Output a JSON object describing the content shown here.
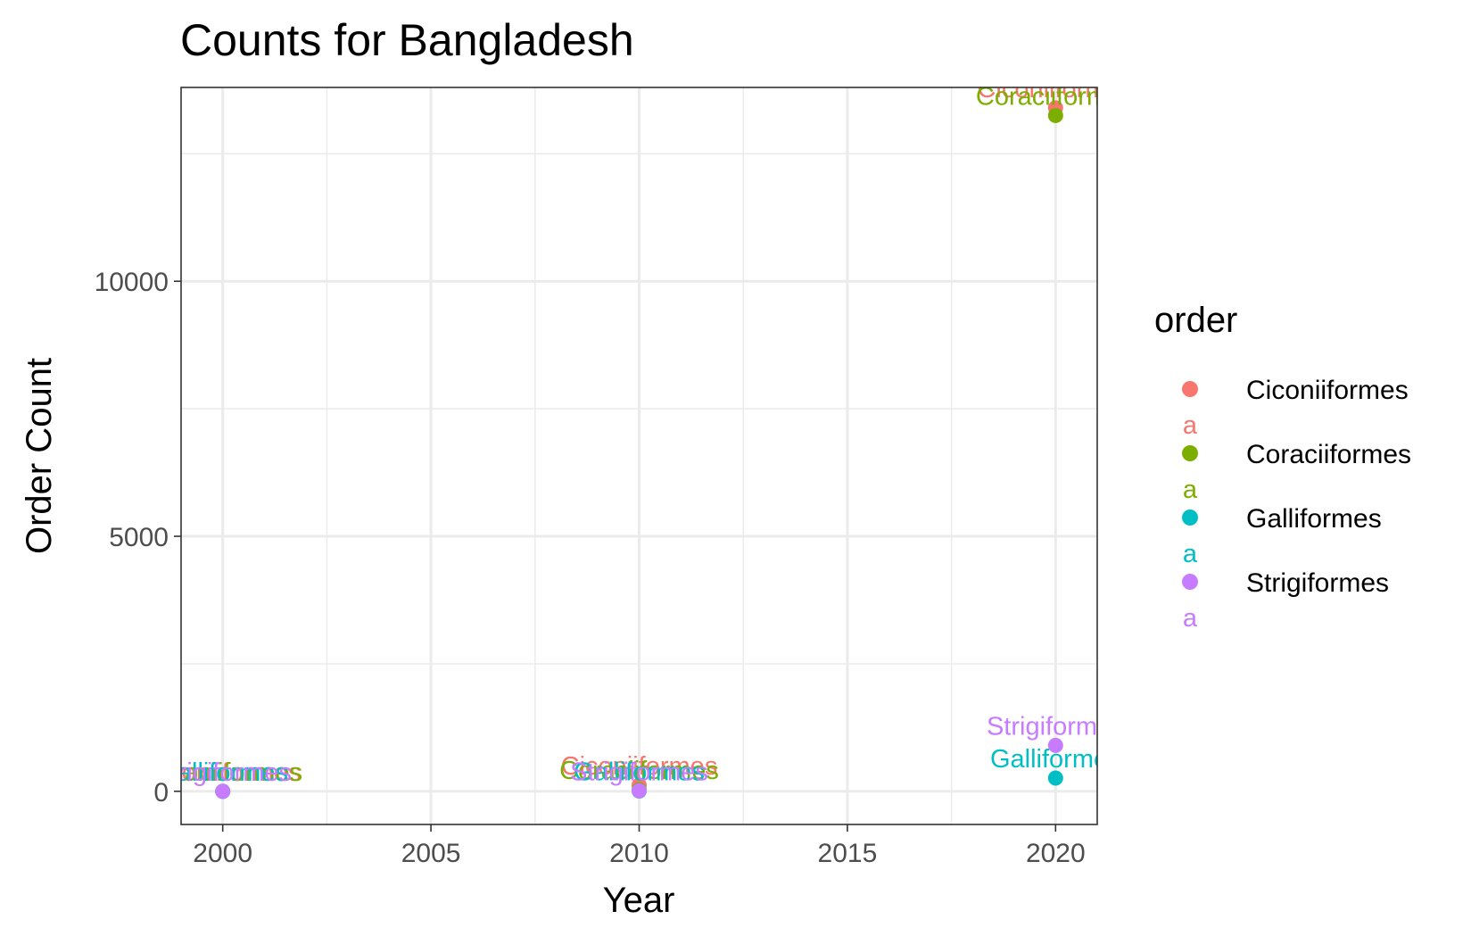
{
  "chart_data": {
    "type": "scatter",
    "title": "Counts for Bangladesh",
    "xlabel": "Year",
    "ylabel": "Order Count",
    "xlim": [
      1999,
      2021
    ],
    "ylim": [
      -650,
      13800
    ],
    "x_ticks": [
      2000,
      2005,
      2010,
      2015,
      2020
    ],
    "x_tick_labels": [
      "2000",
      "2005",
      "2010",
      "2015",
      "2020"
    ],
    "y_ticks": [
      0,
      5000,
      10000
    ],
    "y_tick_labels": [
      "0",
      "5000",
      "10000"
    ],
    "grid": true,
    "legend": {
      "title": "order",
      "position": "right",
      "entries": [
        "Ciconiiformes",
        "Coraciiformes",
        "Galliformes",
        "Strigiformes"
      ],
      "key_glyphs": [
        "a",
        "a",
        "a",
        "a"
      ]
    },
    "colors": {
      "Ciconiiformes": "#F8766D",
      "Coraciiformes": "#7CAE00",
      "Galliformes": "#00BFC4",
      "Strigiformes": "#C77CFF"
    },
    "series": [
      {
        "name": "Ciconiiformes",
        "x": [
          2000,
          2010,
          2020
        ],
        "y": [
          0,
          120,
          13400
        ]
      },
      {
        "name": "Coraciiformes",
        "x": [
          2000,
          2010,
          2020
        ],
        "y": [
          0,
          30,
          13250
        ]
      },
      {
        "name": "Galliformes",
        "x": [
          2000,
          2010,
          2020
        ],
        "y": [
          0,
          5,
          260
        ]
      },
      {
        "name": "Strigiformes",
        "x": [
          2000,
          2010,
          2020
        ],
        "y": [
          0,
          10,
          900
        ]
      }
    ],
    "annotations": [
      {
        "text": "Ciconiiformes",
        "series": "Ciconiiformes",
        "x": 2000,
        "y": 0
      },
      {
        "text": "Coraciiformes",
        "series": "Coraciiformes",
        "x": 2000,
        "y": 0
      },
      {
        "text": "Galliformes",
        "series": "Galliformes",
        "x": 2000,
        "y": 0
      },
      {
        "text": "Strigiformes",
        "series": "Strigiformes",
        "x": 2000,
        "y": 0
      },
      {
        "text": "Ciconiiformes",
        "series": "Ciconiiformes",
        "x": 2010,
        "y": 120
      },
      {
        "text": "Coraciiformes",
        "series": "Coraciiformes",
        "x": 2010,
        "y": 30
      },
      {
        "text": "Galliformes",
        "series": "Galliformes",
        "x": 2010,
        "y": 5
      },
      {
        "text": "Strigiformes",
        "series": "Strigiformes",
        "x": 2010,
        "y": 10
      },
      {
        "text": "Ciconiiformes",
        "series": "Ciconiiformes",
        "x": 2020,
        "y": 13400
      },
      {
        "text": "Coraciiformes",
        "series": "Coraciiformes",
        "x": 2020,
        "y": 13250
      },
      {
        "text": "Galliformes",
        "series": "Galliformes",
        "x": 2020,
        "y": 260
      },
      {
        "text": "Strigiformes",
        "series": "Strigiformes",
        "x": 2020,
        "y": 900
      }
    ]
  }
}
